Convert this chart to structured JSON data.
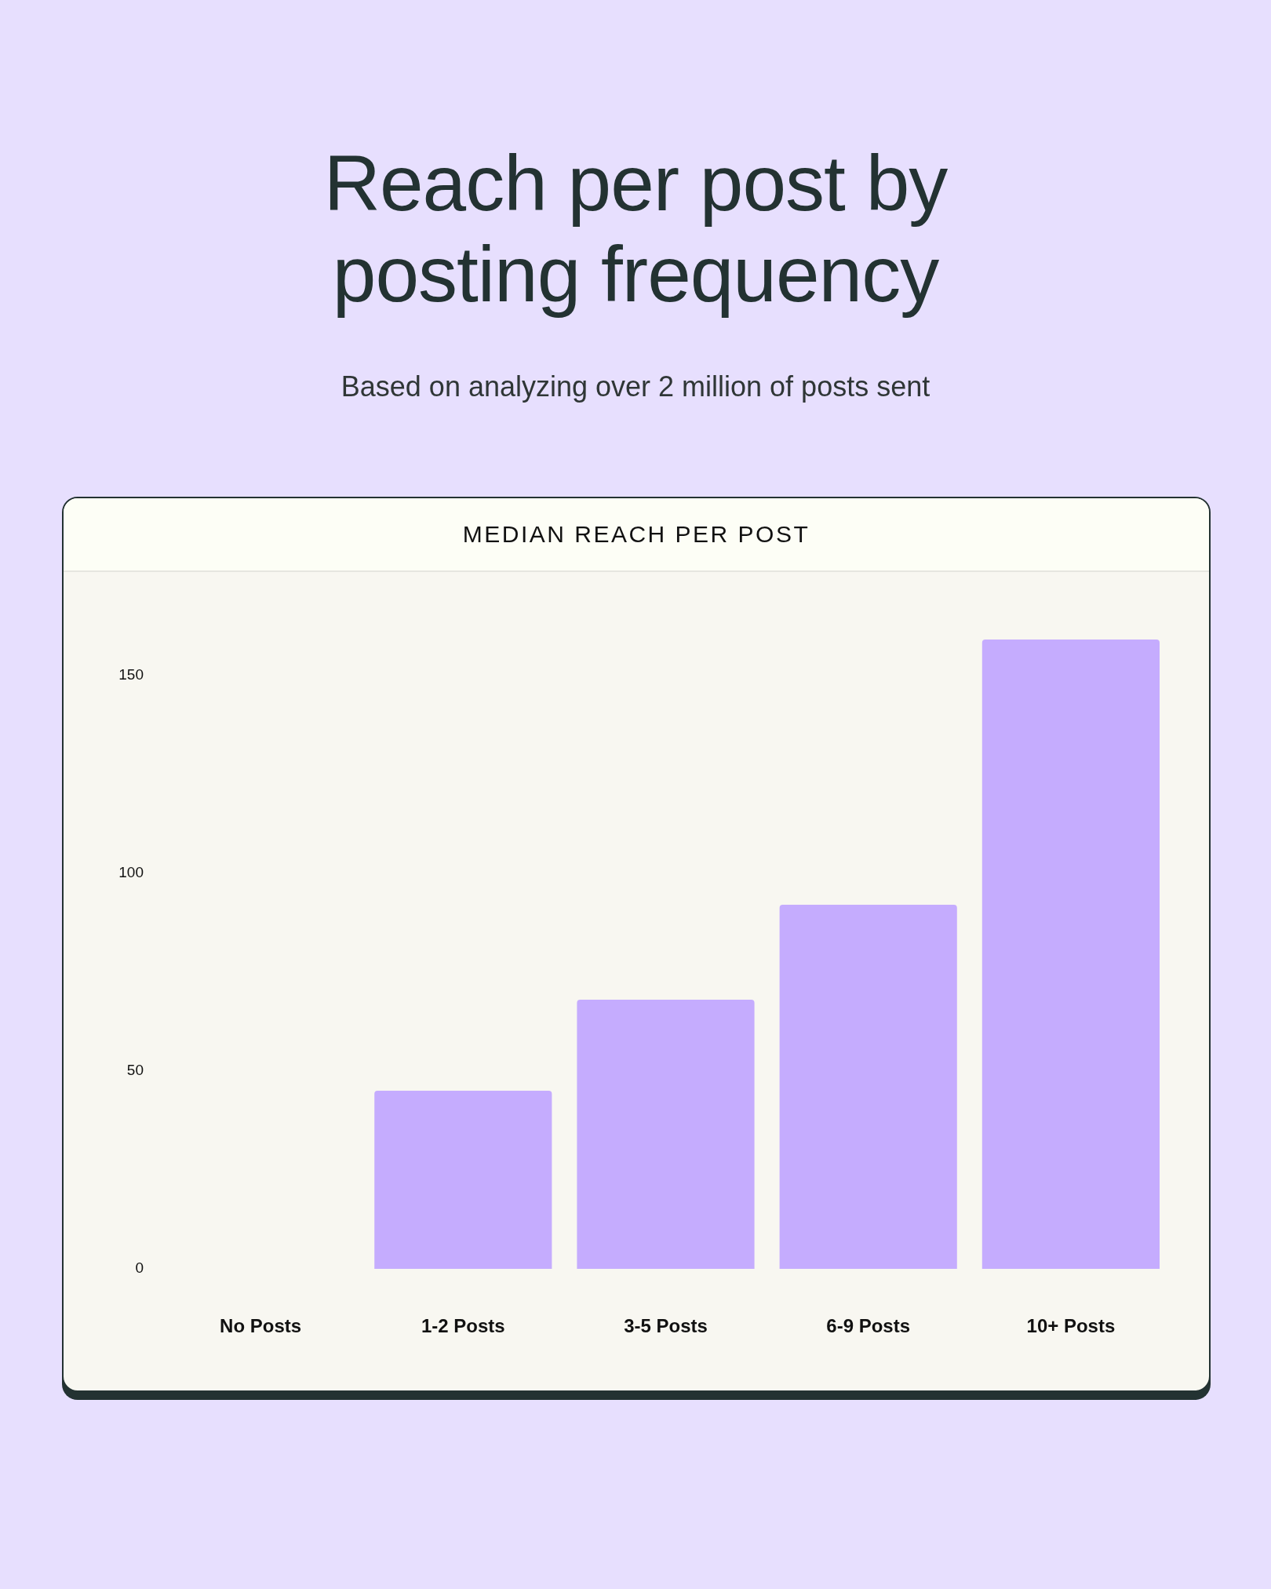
{
  "chart_data": {
    "type": "bar",
    "title": "Reach per post by posting frequency",
    "subtitle": "Based on analyzing over 2 million of posts sent",
    "annotations": [
      "MEDIAN REACH PER POST"
    ],
    "categories": [
      "No Posts",
      "1-2 Posts",
      "3-5 Posts",
      "6-9 Posts",
      "10+ Posts"
    ],
    "values": [
      0,
      45,
      68,
      92,
      159
    ],
    "color": "#c5acfe",
    "ylim": [
      0,
      159
    ],
    "yticks": [
      0,
      50,
      100,
      150
    ],
    "grid": false
  }
}
